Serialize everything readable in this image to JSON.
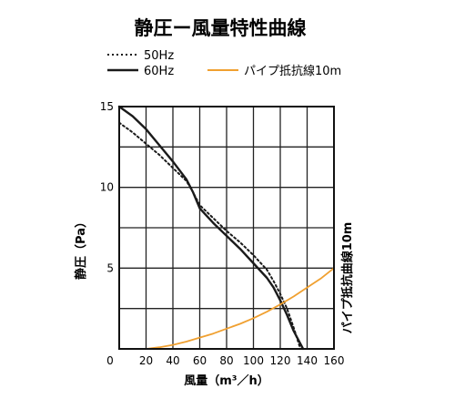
{
  "chart_data": {
    "type": "line",
    "title": "静圧ー風量特性曲線",
    "xlabel": "風量（m³／h）",
    "ylabel": "静圧（Pa）",
    "secondary_label": "パイプ抵抗曲線10m",
    "xlim": [
      0,
      160
    ],
    "ylim": [
      0,
      15
    ],
    "x_ticks": [
      "0",
      "20",
      "40",
      "60",
      "80",
      "100",
      "120",
      "140",
      "160"
    ],
    "y_ticks": [
      "5",
      "10",
      "15"
    ],
    "grid": true,
    "legend_placement": "top",
    "series": [
      {
        "name": "50Hz",
        "style": "dotted",
        "color": "#1a1a1a",
        "points": [
          [
            0,
            14.0
          ],
          [
            10,
            13.4
          ],
          [
            20,
            12.7
          ],
          [
            30,
            12.0
          ],
          [
            40,
            11.2
          ],
          [
            50,
            10.4
          ],
          [
            55,
            9.7
          ],
          [
            60,
            8.9
          ],
          [
            70,
            8.1
          ],
          [
            80,
            7.3
          ],
          [
            90,
            6.6
          ],
          [
            100,
            5.8
          ],
          [
            110,
            4.9
          ],
          [
            115,
            4.2
          ],
          [
            120,
            3.4
          ],
          [
            125,
            2.5
          ],
          [
            130,
            1.3
          ],
          [
            135,
            0.0
          ]
        ]
      },
      {
        "name": "60Hz",
        "style": "solid",
        "color": "#1a1a1a",
        "points": [
          [
            0,
            15.0
          ],
          [
            10,
            14.4
          ],
          [
            20,
            13.6
          ],
          [
            30,
            12.6
          ],
          [
            40,
            11.6
          ],
          [
            50,
            10.5
          ],
          [
            55,
            9.7
          ],
          [
            60,
            8.7
          ],
          [
            70,
            7.8
          ],
          [
            80,
            7.0
          ],
          [
            90,
            6.2
          ],
          [
            100,
            5.3
          ],
          [
            110,
            4.4
          ],
          [
            115,
            3.8
          ],
          [
            120,
            3.0
          ],
          [
            125,
            2.1
          ],
          [
            130,
            1.1
          ],
          [
            137,
            0.0
          ]
        ]
      },
      {
        "name": "パイプ抵抗線10m",
        "style": "solid",
        "color": "#f0a030",
        "points": [
          [
            20,
            0.0
          ],
          [
            30,
            0.1
          ],
          [
            40,
            0.25
          ],
          [
            50,
            0.45
          ],
          [
            60,
            0.7
          ],
          [
            70,
            0.95
          ],
          [
            80,
            1.25
          ],
          [
            90,
            1.55
          ],
          [
            100,
            1.9
          ],
          [
            110,
            2.3
          ],
          [
            120,
            2.75
          ],
          [
            130,
            3.25
          ],
          [
            140,
            3.8
          ],
          [
            150,
            4.35
          ],
          [
            160,
            5.0
          ]
        ]
      }
    ]
  }
}
